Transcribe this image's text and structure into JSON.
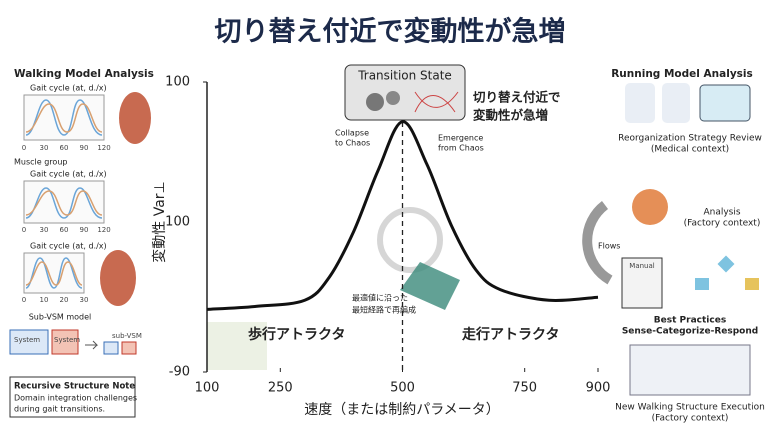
{
  "title": "切り替え付近で変動性が急増",
  "chart_data": {
    "type": "line",
    "x": [
      100,
      200,
      300,
      350,
      400,
      450,
      500,
      550,
      600,
      650,
      700,
      800,
      900
    ],
    "values": [
      -49,
      -47,
      -43,
      -28,
      2,
      42,
      74,
      46,
      6,
      -23,
      -36,
      -43,
      -41
    ],
    "color": "#111111",
    "xlim": [
      100,
      900
    ],
    "xticks": [
      100,
      250,
      500,
      750,
      900
    ],
    "ylim": [
      -90,
      100
    ],
    "yticks": [
      -90,
      100
    ],
    "mid_y_label": "100",
    "x_label": "速度（または制約パラメータ）",
    "y_label": "変動性 Var⊥",
    "marker_x": 500,
    "transition_label": "Transition State",
    "callout": [
      "切り替え付近で",
      "変動性が急増"
    ],
    "collapse": [
      "Collapse",
      "to Chaos"
    ],
    "emergence": [
      "Emergence",
      "from Chaos"
    ],
    "path_note": [
      "最適値に沿った",
      "最短経路で再編成"
    ],
    "walk_attractor": "歩行アトラクタ",
    "run_attractor": "走行アトラクタ"
  },
  "left_panel": {
    "title": "Walking Model Analysis",
    "plot1_label": "Gait cycle (at, d./x)",
    "plot1_ticks": [
      "0",
      "30",
      "60",
      "90",
      "120"
    ],
    "group_label": "Muscle group",
    "plot2_label": "Gait cycle (at, d./x)",
    "plot2_ticks": [
      "0",
      "30",
      "60",
      "90",
      "120"
    ],
    "plot3_label": "Gait cycle (at, d./x)",
    "plot3_ticks": [
      "0",
      "10",
      "20",
      "30"
    ],
    "vsm_title": "Sub-VSM model",
    "system_a": "System",
    "system_b": "System",
    "sub_vsm": "sub-VSM",
    "note_title": "Recursive Structure Note",
    "note_lines": [
      "Domain integration challenges",
      "during gait transitions."
    ]
  },
  "right_panel": {
    "title": "Running Model Analysis",
    "review": [
      "Reorganization Strategy Review",
      "(Medical context)"
    ],
    "analysis": [
      "Analysis",
      "(Factory context)"
    ],
    "flows": "Flows",
    "manual": "Manual",
    "practices": [
      "Best Practices",
      "Sense-Categorize-Respond"
    ],
    "execution": [
      "New Walking Structure Execution",
      "(Factory context)"
    ]
  }
}
